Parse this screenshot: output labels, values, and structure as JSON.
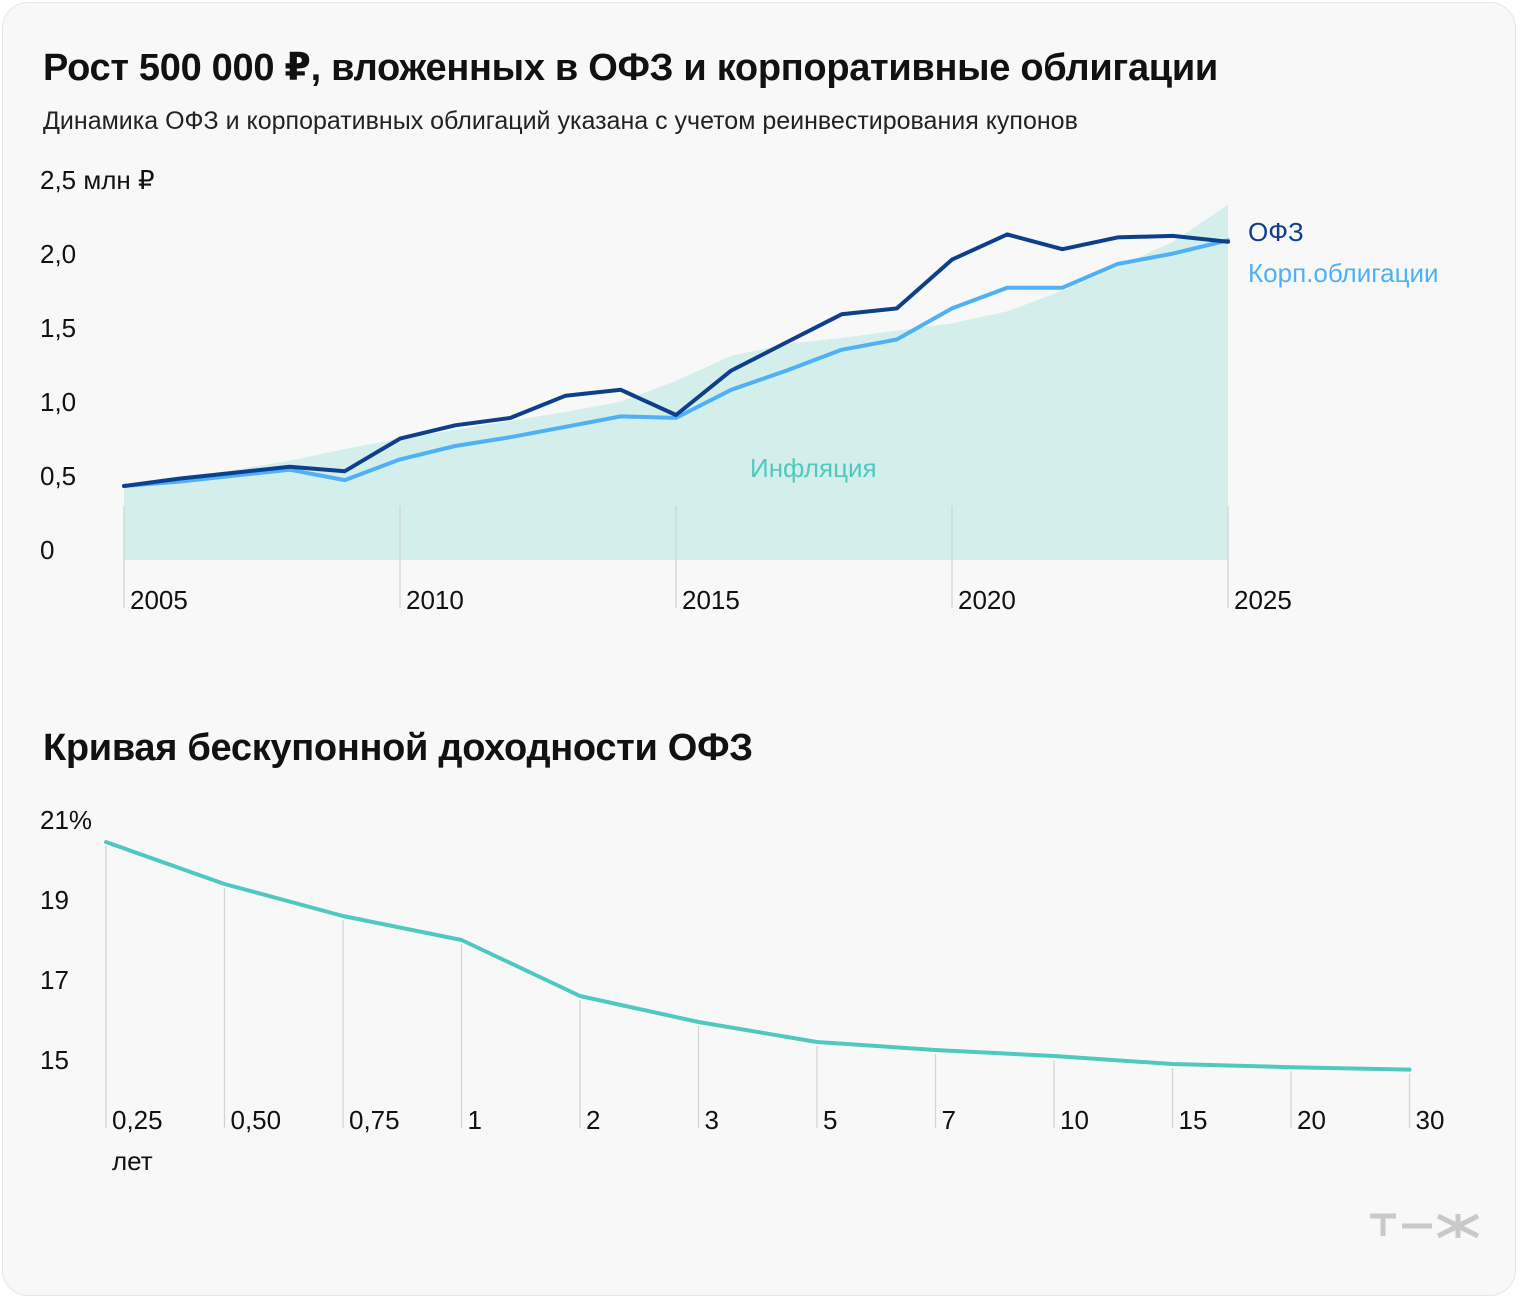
{
  "header": {
    "title": "Рост 500 000 ₽, вложенных в ОФЗ и корпоративные облигации",
    "subtitle": "Динамика ОФЗ и корпоративных облигаций указана с учетом реинвестирования купонов"
  },
  "logo": {
    "text": "т—ж",
    "icon": "tzh-logo-icon"
  },
  "colors": {
    "background": "#f8f8f8",
    "ofz": "#0d3f8a",
    "corp": "#4fb0f5",
    "inflation_fill": "#d4eeec",
    "inflation_text": "#4fc9bf",
    "yield_line": "#4fc9bf",
    "grid": "#cfd6d6"
  },
  "chart_data": [
    {
      "type": "line",
      "title": "Рост 500 000 ₽, вложенных в ОФЗ и корпоративные облигации",
      "ylabel": "2,5 млн ₽",
      "ylim": [
        0,
        2.5
      ],
      "y_ticks": [
        0,
        0.5,
        1.0,
        1.5,
        2.0,
        2.5
      ],
      "y_tick_labels": [
        "0",
        "0,5",
        "1,0",
        "1,5",
        "2,0",
        "2,5 млн ₽"
      ],
      "x_ticks": [
        2005,
        2010,
        2015,
        2020,
        2025
      ],
      "x_tick_labels": [
        "2005",
        "2010",
        "2015",
        "2020",
        "2025"
      ],
      "x": [
        2005,
        2006,
        2007,
        2008,
        2009,
        2010,
        2011,
        2012,
        2013,
        2014,
        2015,
        2016,
        2017,
        2018,
        2019,
        2020,
        2021,
        2022,
        2023,
        2024,
        2025
      ],
      "series": [
        {
          "name": "ОФЗ",
          "values": [
            0.5,
            0.55,
            0.59,
            0.63,
            0.6,
            0.82,
            0.91,
            0.96,
            1.11,
            1.15,
            0.98,
            1.28,
            1.47,
            1.66,
            1.7,
            2.03,
            2.2,
            2.1,
            2.18,
            2.19,
            2.15
          ]
        },
        {
          "name": "Корп.облигации",
          "values": [
            0.5,
            0.53,
            0.57,
            0.61,
            0.54,
            0.68,
            0.77,
            0.83,
            0.9,
            0.97,
            0.96,
            1.15,
            1.28,
            1.42,
            1.49,
            1.7,
            1.84,
            1.84,
            2.0,
            2.07,
            2.16
          ]
        },
        {
          "name": "Инфляция",
          "kind": "area",
          "values": [
            0.5,
            0.55,
            0.61,
            0.67,
            0.75,
            0.82,
            0.88,
            0.94,
            1.0,
            1.07,
            1.21,
            1.38,
            1.46,
            1.5,
            1.55,
            1.6,
            1.68,
            1.82,
            1.98,
            2.15,
            2.4
          ]
        }
      ],
      "legend": [
        {
          "name": "ОФЗ",
          "placement": "right"
        },
        {
          "name": "Корп.облигации",
          "placement": "right"
        }
      ],
      "annotations": [
        {
          "text": "Инфляция",
          "placement": "inside-area"
        }
      ]
    },
    {
      "type": "line",
      "title": "Кривая бескупонной доходности ОФЗ",
      "ylabel": "%",
      "ylim": [
        14,
        21
      ],
      "y_ticks": [
        15,
        17,
        19,
        21
      ],
      "y_tick_labels": [
        "15",
        "17",
        "19",
        "21%"
      ],
      "categories": [
        "0,25",
        "0,50",
        "0,75",
        "1",
        "2",
        "3",
        "5",
        "7",
        "10",
        "15",
        "20",
        "30"
      ],
      "xlabel": "лет",
      "series": [
        {
          "name": "Доходность ОФЗ",
          "values": [
            20.45,
            19.4,
            18.6,
            18.0,
            16.6,
            15.95,
            15.45,
            15.25,
            15.1,
            14.9,
            14.82,
            14.76
          ]
        }
      ]
    }
  ]
}
